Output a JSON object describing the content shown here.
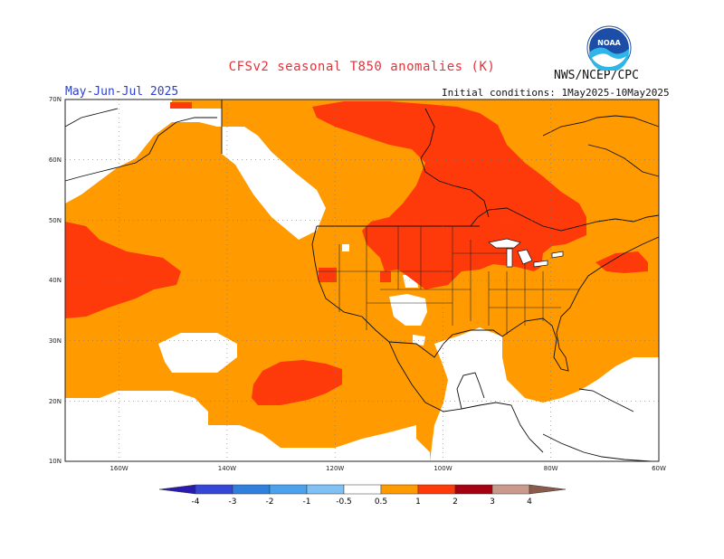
{
  "title": "CFSv2 seasonal T850 anomalies (K)",
  "credit": "NWS/NCEP/CPC",
  "period": "May-Jun-Jul 2025",
  "initial_conditions": "Initial conditions: 1May2025-10May2025",
  "logo_text": "NOAA",
  "map": {
    "lat_labels": [
      "70N",
      "60N",
      "50N",
      "40N",
      "30N",
      "20N",
      "10N"
    ],
    "lon_labels": [
      "160W",
      "140W",
      "120W",
      "100W",
      "80W",
      "60W"
    ]
  },
  "colorbar": {
    "labels": [
      "-4",
      "-3",
      "-2",
      "-1",
      "-0.5",
      "0.5",
      "1",
      "2",
      "3",
      "4"
    ],
    "colors": [
      "#2a1ab0",
      "#3546d6",
      "#2f7fdc",
      "#4aa2ee",
      "#7fc0f5",
      "#ffffff",
      "#ff9a00",
      "#ff3a0a",
      "#a40012",
      "#c99a8c",
      "#8a5a4a"
    ]
  },
  "colors": {
    "warm_light": "#ff9a00",
    "warm_strong": "#ff3a0a",
    "neutral": "#ffffff",
    "title": "#e0343b",
    "period": "#2b3fd6"
  }
}
